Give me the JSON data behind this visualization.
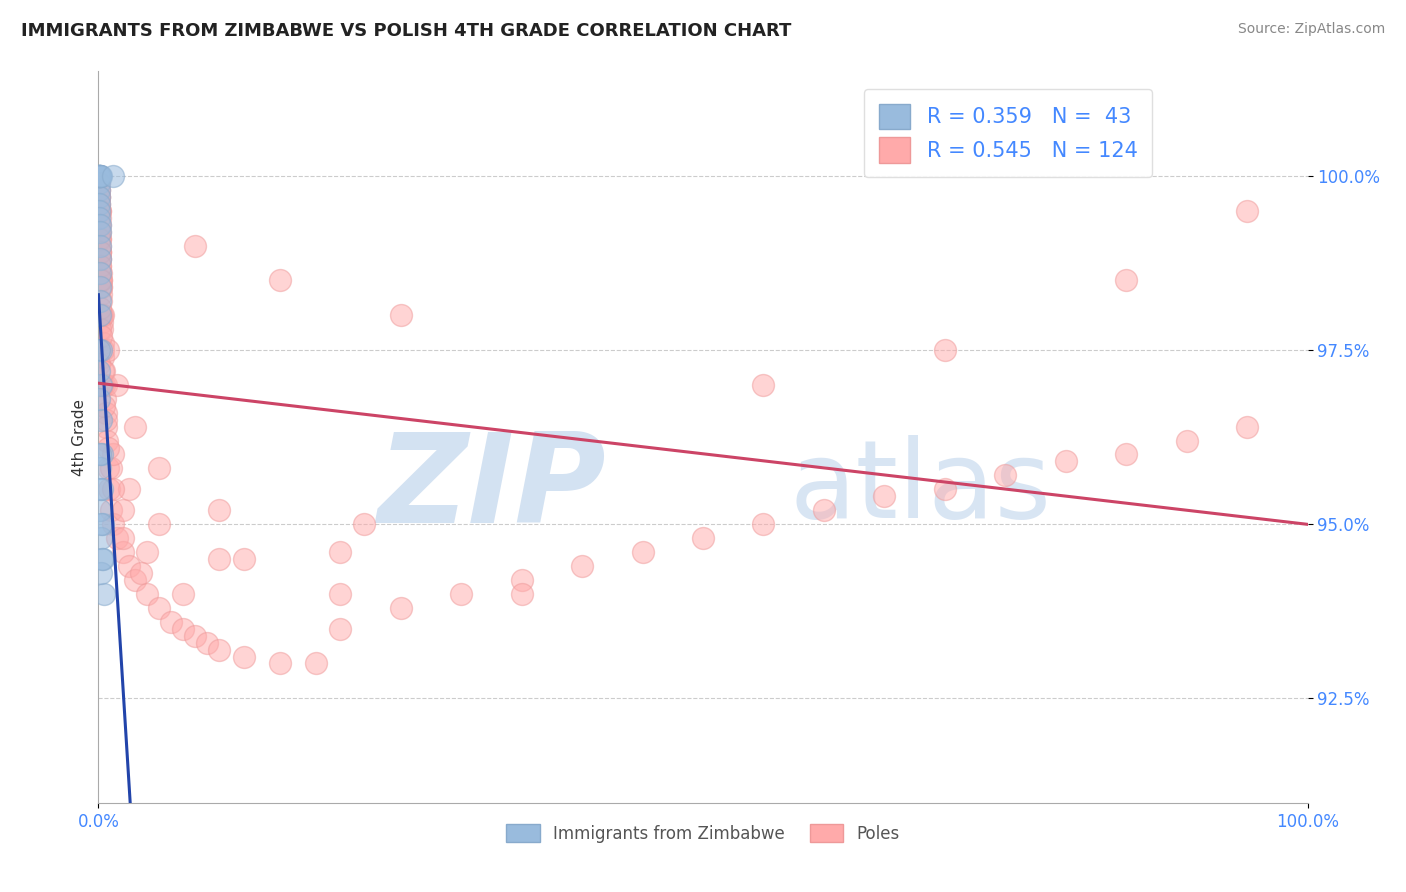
{
  "title": "IMMIGRANTS FROM ZIMBABWE VS POLISH 4TH GRADE CORRELATION CHART",
  "source": "Source: ZipAtlas.com",
  "ylabel": "4th Grade",
  "xlim": [
    0,
    100
  ],
  "ylim": [
    91.0,
    101.5
  ],
  "yticks": [
    92.5,
    95.0,
    97.5,
    100.0
  ],
  "ytick_labels": [
    "92.5%",
    "95.0%",
    "97.5%",
    "100.0%"
  ],
  "xtick_labels": [
    "0.0%",
    "100.0%"
  ],
  "legend_top_labels": [
    "R = 0.359   N =  43",
    "R = 0.545   N = 124"
  ],
  "legend_bottom_labels": [
    "Immigrants from Zimbabwe",
    "Poles"
  ],
  "blue_face_color": "#99BBDD",
  "blue_edge_color": "#88AACC",
  "pink_face_color": "#FFAAAA",
  "pink_edge_color": "#EE9999",
  "blue_line_color": "#2244AA",
  "pink_line_color": "#CC4466",
  "R_blue": 0.359,
  "N_blue": 43,
  "R_pink": 0.545,
  "N_pink": 124,
  "background_color": "#FFFFFF",
  "grid_color": "#CCCCCC",
  "blue_scatter_x": [
    0.04,
    0.05,
    0.05,
    0.05,
    0.05,
    0.05,
    0.06,
    0.06,
    0.07,
    0.07,
    0.08,
    0.09,
    0.09,
    0.1,
    0.1,
    0.11,
    0.12,
    0.13,
    0.14,
    0.15,
    0.16,
    0.17,
    0.18,
    0.2,
    0.22,
    0.25,
    0.28,
    0.3,
    0.35,
    0.42,
    0.5,
    0.1,
    0.14,
    0.18,
    0.22,
    1.2,
    0.05,
    0.06,
    0.08,
    0.09,
    0.12,
    0.2,
    0.3
  ],
  "blue_scatter_y": [
    100.0,
    100.0,
    99.9,
    99.8,
    99.7,
    99.6,
    100.0,
    99.5,
    100.0,
    99.4,
    100.0,
    100.0,
    99.3,
    100.0,
    99.2,
    99.0,
    100.0,
    98.8,
    98.6,
    98.4,
    98.2,
    98.0,
    100.0,
    97.5,
    97.0,
    96.5,
    96.0,
    95.5,
    95.0,
    94.5,
    94.0,
    95.8,
    95.2,
    94.8,
    94.3,
    100.0,
    97.5,
    96.8,
    97.2,
    96.0,
    95.5,
    95.0,
    94.5
  ],
  "pink_scatter_x": [
    0.04,
    0.05,
    0.05,
    0.06,
    0.06,
    0.07,
    0.07,
    0.08,
    0.08,
    0.09,
    0.1,
    0.1,
    0.11,
    0.12,
    0.12,
    0.13,
    0.14,
    0.15,
    0.15,
    0.16,
    0.17,
    0.18,
    0.2,
    0.2,
    0.22,
    0.25,
    0.25,
    0.28,
    0.3,
    0.3,
    0.35,
    0.4,
    0.45,
    0.5,
    0.55,
    0.6,
    0.65,
    0.7,
    0.8,
    0.9,
    1.0,
    1.2,
    1.5,
    2.0,
    2.5,
    3.0,
    4.0,
    5.0,
    6.0,
    7.0,
    8.0,
    9.0,
    10.0,
    12.0,
    15.0,
    18.0,
    20.0,
    25.0,
    30.0,
    35.0,
    40.0,
    45.0,
    50.0,
    55.0,
    60.0,
    65.0,
    70.0,
    75.0,
    80.0,
    85.0,
    90.0,
    95.0,
    0.05,
    0.08,
    0.12,
    0.18,
    0.25,
    0.4,
    0.6,
    1.0,
    2.0,
    4.0,
    8.0,
    15.0,
    25.0,
    0.05,
    0.1,
    0.2,
    0.4,
    0.8,
    1.5,
    3.0,
    5.0,
    10.0,
    20.0,
    35.0,
    55.0,
    70.0,
    85.0,
    95.0,
    0.05,
    0.15,
    0.3,
    0.6,
    1.2,
    2.5,
    5.0,
    10.0,
    20.0,
    0.07,
    0.09,
    0.11,
    0.13,
    0.17,
    0.22,
    0.35,
    0.5,
    0.8,
    1.2,
    2.0,
    3.5,
    7.0,
    12.0,
    22.0
  ],
  "pink_scatter_y": [
    99.9,
    99.8,
    99.7,
    99.8,
    99.7,
    99.7,
    99.6,
    99.6,
    99.5,
    99.5,
    99.4,
    99.3,
    99.2,
    99.1,
    99.5,
    99.0,
    98.9,
    98.8,
    99.1,
    98.7,
    98.6,
    98.5,
    98.4,
    98.6,
    98.3,
    98.2,
    98.0,
    97.9,
    97.8,
    98.0,
    97.6,
    97.4,
    97.2,
    97.0,
    96.8,
    96.6,
    96.4,
    96.2,
    95.8,
    95.5,
    95.2,
    95.0,
    94.8,
    94.6,
    94.4,
    94.2,
    94.0,
    93.8,
    93.6,
    93.5,
    93.4,
    93.3,
    93.2,
    93.1,
    93.0,
    93.0,
    93.5,
    93.8,
    94.0,
    94.2,
    94.4,
    94.6,
    94.8,
    95.0,
    95.2,
    95.4,
    95.5,
    95.7,
    95.9,
    96.0,
    96.2,
    96.4,
    99.5,
    99.2,
    98.8,
    98.4,
    98.0,
    97.5,
    97.0,
    95.8,
    95.2,
    94.6,
    99.0,
    98.5,
    98.0,
    99.3,
    98.9,
    98.5,
    98.0,
    97.5,
    97.0,
    96.4,
    95.8,
    95.2,
    94.6,
    94.0,
    97.0,
    97.5,
    98.5,
    99.5,
    97.3,
    97.8,
    97.0,
    96.5,
    96.0,
    95.5,
    95.0,
    94.5,
    94.0,
    99.1,
    98.9,
    98.7,
    98.5,
    98.1,
    97.7,
    97.2,
    96.7,
    96.1,
    95.5,
    94.8,
    94.3,
    94.0,
    94.5,
    95.0
  ]
}
